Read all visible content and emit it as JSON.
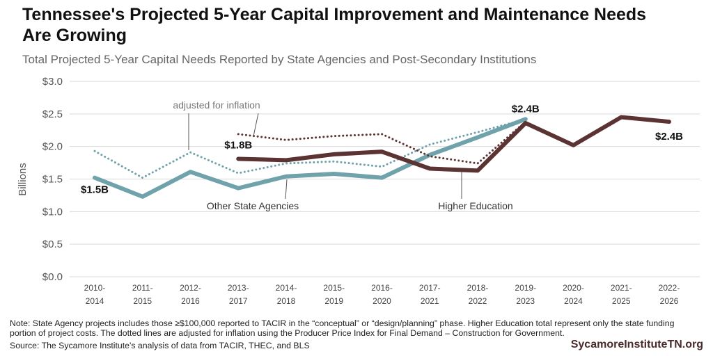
{
  "chart_data": {
    "type": "line",
    "title": "Tennessee's Projected 5-Year Capital Improvement and Maintenance Needs Are Growing",
    "subtitle": "Total Projected 5-Year Capital Needs Reported by State Agencies and Post-Secondary Institutions",
    "y_label": "Billions",
    "categories": [
      "2010-2014",
      "2011-2015",
      "2012-2016",
      "2013-2017",
      "2014-2018",
      "2015-2019",
      "2016-2020",
      "2017-2021",
      "2018-2022",
      "2019-2023",
      "2020-2024",
      "2021-2025",
      "2022-2026"
    ],
    "series": [
      {
        "name": "Other State Agencies",
        "color": "#6fa2ab",
        "style": "solid",
        "values": [
          1.52,
          1.23,
          1.61,
          1.36,
          1.54,
          1.58,
          1.52,
          1.87,
          2.14,
          2.42,
          null,
          null,
          null
        ],
        "value_labels": [
          "$1.5B",
          null,
          null,
          null,
          null,
          null,
          null,
          null,
          null,
          "$2.4B",
          null,
          null,
          null
        ]
      },
      {
        "color": "#6fa2ab",
        "style": "dotted",
        "values": [
          1.93,
          1.52,
          1.91,
          1.59,
          1.74,
          1.77,
          1.69,
          2.03,
          2.22,
          2.42,
          null,
          null,
          null
        ]
      },
      {
        "color": "#5b3332",
        "style": "dotted",
        "values": [
          null,
          null,
          null,
          2.19,
          2.1,
          2.16,
          2.19,
          1.85,
          1.74,
          2.38,
          null,
          null,
          null
        ]
      },
      {
        "name": "Higher Education",
        "color": "#5b3332",
        "style": "solid",
        "values": [
          null,
          null,
          null,
          1.81,
          1.79,
          1.88,
          1.92,
          1.66,
          1.63,
          2.36,
          2.02,
          2.45,
          2.38
        ],
        "value_labels": [
          null,
          null,
          null,
          "$1.8B",
          null,
          null,
          null,
          null,
          null,
          null,
          null,
          null,
          "$2.4B"
        ]
      }
    ],
    "annotation": "adjusted for inflation",
    "ylim": [
      0,
      3
    ],
    "yticks": [
      {
        "value": 0,
        "label": "$0.0"
      },
      {
        "value": 0.5,
        "label": "$0.5"
      },
      {
        "value": 1,
        "label": "$1.0"
      },
      {
        "value": 1.5,
        "label": "$1.5"
      },
      {
        "value": 2,
        "label": "$2.0"
      },
      {
        "value": 2.5,
        "label": "$2.5"
      },
      {
        "value": 3,
        "label": "$3.0"
      }
    ],
    "grid": true,
    "note": "Note: State Agency projects includes those ≥$100,000 reported to TACIR in the “conceptual” or “design/planning” phase. Higher Education total represent only the state funding portion of project costs. The dotted lines are adjusted for inflation using the Producer Price Index for Final Demand – Construction for Government.",
    "source": "Source: The Sycamore Institute's analysis of data from TACIR, THEC, and BLS",
    "website": "SycamoreInstituteTN.org"
  }
}
